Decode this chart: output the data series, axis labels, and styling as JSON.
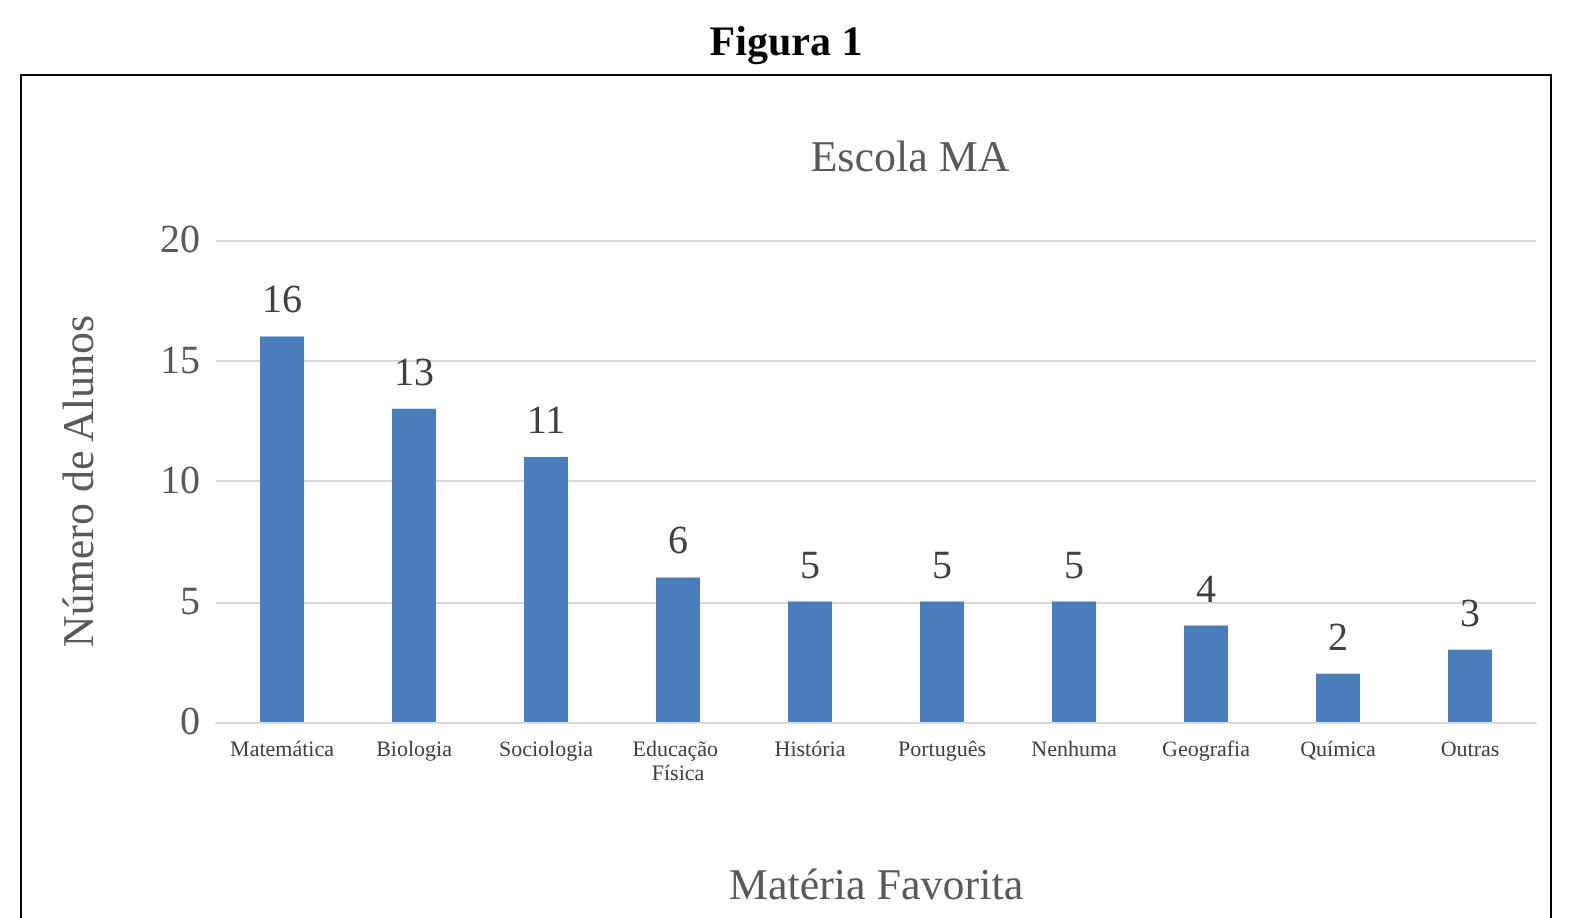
{
  "chart_data": {
    "type": "bar",
    "title": "Figura 1",
    "subtitle": "Escola MA",
    "xlabel": "Matéria Favorita",
    "ylabel": "Número de Alunos",
    "categories": [
      "Matemática",
      "Biologia",
      "Sociologia",
      "Educação Física",
      "História",
      "Português",
      "Nenhuma",
      "Geografia",
      "Química",
      "Outras"
    ],
    "values": [
      16,
      13,
      11,
      6,
      5,
      5,
      5,
      4,
      2,
      3
    ],
    "color": "#4a7ebb",
    "ylim": [
      0,
      20
    ],
    "yticks": [
      0,
      5,
      10,
      15,
      20
    ],
    "grid": "y",
    "data_labels": true
  }
}
